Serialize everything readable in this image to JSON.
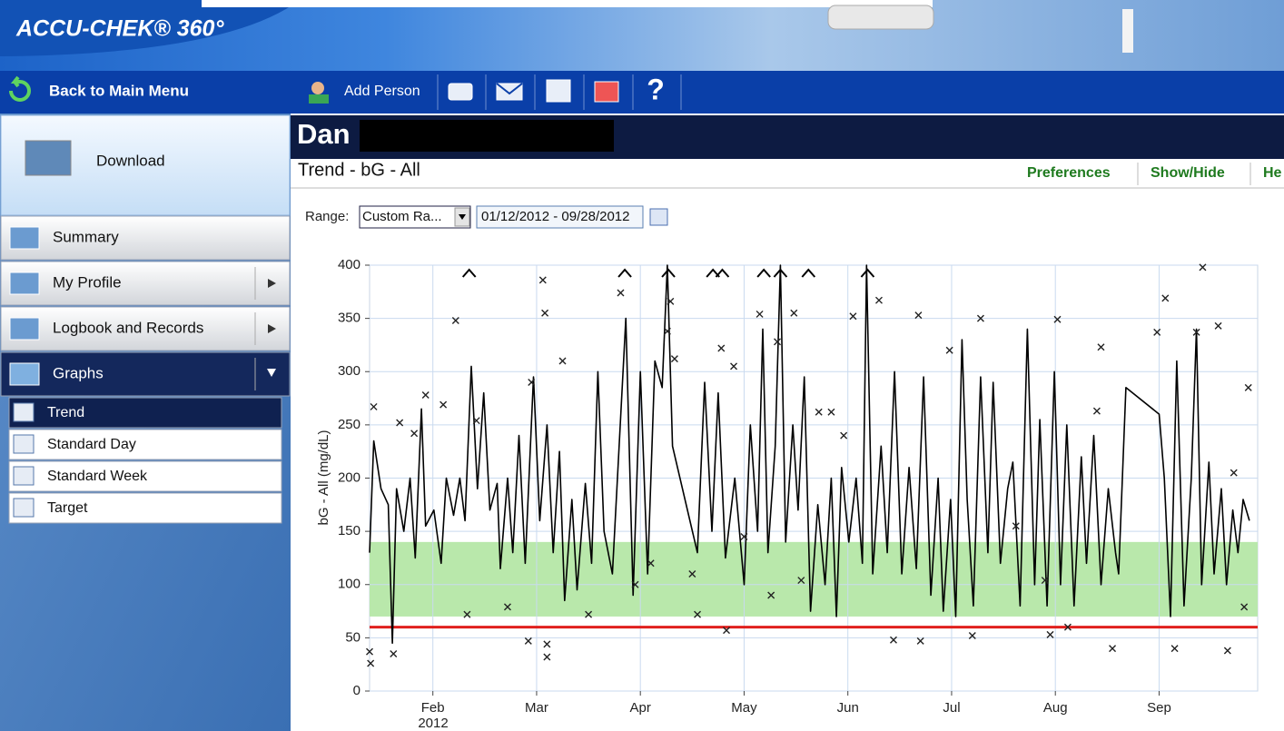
{
  "app": {
    "title": "ACCU-CHEK® 360°"
  },
  "toolbar": {
    "back": "Back to Main Menu",
    "add_person": "Add Person"
  },
  "sidebar": {
    "download": "Download",
    "menu": [
      "Summary",
      "My Profile",
      "Logbook and Records",
      "Graphs"
    ],
    "submenu": [
      "Trend",
      "Standard Day",
      "Standard Week",
      "Target"
    ]
  },
  "header": {
    "name": "Dan",
    "view_title": "Trend - bG - All",
    "links": [
      "Preferences",
      "Show/Hide",
      "He"
    ]
  },
  "range": {
    "label": "Range:",
    "select": "Custom Ra...",
    "dates": "01/12/2012 - 09/28/2012"
  },
  "chart_data": {
    "type": "line",
    "y_label": "bG - All (mg/dL)",
    "x_year_label": "2012",
    "xlim": [
      1.39,
      9.95
    ],
    "xticks": [
      {
        "value": 2,
        "label": "Feb"
      },
      {
        "value": 3,
        "label": "Mar"
      },
      {
        "value": 4,
        "label": "Apr"
      },
      {
        "value": 5,
        "label": "May"
      },
      {
        "value": 6,
        "label": "Jun"
      },
      {
        "value": 7,
        "label": "Jul"
      },
      {
        "value": 8,
        "label": "Aug"
      },
      {
        "value": 9,
        "label": "Sep"
      }
    ],
    "ylim": [
      0,
      400
    ],
    "yticks": [
      0,
      50,
      100,
      150,
      200,
      250,
      300,
      350,
      400
    ],
    "grid": true,
    "target_range": [
      70,
      140
    ],
    "target_color": "#b9e8ab",
    "hypo_limit": 60,
    "hypo_color": "#e0201e",
    "series": [
      {
        "type": "line",
        "color": "#000000",
        "x": [
          1.39,
          1.43,
          1.5,
          1.57,
          1.61,
          1.65,
          1.72,
          1.78,
          1.83,
          1.89,
          1.93,
          2.01,
          2.08,
          2.13,
          2.2,
          2.26,
          2.31,
          2.37,
          2.43,
          2.49,
          2.55,
          2.62,
          2.65,
          2.72,
          2.77,
          2.83,
          2.89,
          2.97,
          3.03,
          3.1,
          3.16,
          3.22,
          3.27,
          3.34,
          3.39,
          3.47,
          3.53,
          3.59,
          3.65,
          3.73,
          3.79,
          3.86,
          3.93,
          4.0,
          4.07,
          4.14,
          4.21,
          4.26,
          4.31,
          4.55,
          4.62,
          4.69,
          4.75,
          4.82,
          4.91,
          5.0,
          5.06,
          5.13,
          5.18,
          5.23,
          5.3,
          5.35,
          5.4,
          5.47,
          5.52,
          5.58,
          5.64,
          5.71,
          5.78,
          5.84,
          5.89,
          5.94,
          6.01,
          6.08,
          6.14,
          6.18,
          6.24,
          6.32,
          6.38,
          6.45,
          6.52,
          6.59,
          6.66,
          6.73,
          6.8,
          6.87,
          6.92,
          6.99,
          7.04,
          7.1,
          7.15,
          7.21,
          7.28,
          7.35,
          7.4,
          7.47,
          7.54,
          7.59,
          7.66,
          7.73,
          7.8,
          7.85,
          7.92,
          7.99,
          8.05,
          8.11,
          8.18,
          8.25,
          8.3,
          8.37,
          8.44,
          8.51,
          8.58,
          8.61,
          8.68,
          9.0,
          9.05,
          9.11,
          9.17,
          9.24,
          9.31,
          9.36,
          9.41,
          9.48,
          9.53,
          9.6,
          9.65,
          9.71,
          9.76,
          9.81,
          9.87
        ],
        "values": [
          130,
          235,
          190,
          175,
          45,
          190,
          150,
          200,
          125,
          265,
          155,
          170,
          120,
          200,
          165,
          200,
          160,
          305,
          190,
          280,
          170,
          195,
          115,
          200,
          130,
          240,
          120,
          295,
          160,
          250,
          130,
          225,
          85,
          180,
          95,
          195,
          120,
          300,
          150,
          110,
          220,
          350,
          90,
          300,
          110,
          310,
          285,
          400,
          230,
          130,
          290,
          150,
          280,
          125,
          200,
          100,
          250,
          150,
          340,
          130,
          230,
          400,
          140,
          250,
          170,
          295,
          75,
          175,
          100,
          200,
          70,
          210,
          140,
          200,
          120,
          400,
          110,
          230,
          130,
          300,
          110,
          210,
          115,
          295,
          90,
          200,
          75,
          180,
          70,
          330,
          180,
          80,
          295,
          130,
          290,
          120,
          190,
          215,
          80,
          340,
          100,
          255,
          80,
          300,
          100,
          250,
          80,
          220,
          120,
          240,
          100,
          190,
          130,
          110,
          285,
          260,
          200,
          70,
          310,
          80,
          200,
          340,
          100,
          215,
          110,
          190,
          100,
          170,
          130,
          180,
          160
        ]
      },
      {
        "type": "scatter",
        "marker": "x",
        "color": "#222222",
        "x": [
          1.39,
          1.4,
          1.43,
          1.62,
          1.68,
          1.82,
          1.93,
          2.1,
          2.22,
          2.33,
          2.42,
          2.72,
          2.92,
          2.95,
          3.06,
          3.08,
          3.1,
          3.1,
          3.25,
          3.5,
          3.81,
          3.95,
          4.1,
          4.26,
          4.29,
          4.33,
          4.5,
          4.55,
          4.78,
          4.83,
          4.9,
          5.0,
          5.15,
          5.26,
          5.32,
          5.48,
          5.55,
          5.72,
          5.84,
          5.96,
          6.05,
          6.3,
          6.44,
          6.68,
          6.7,
          6.98,
          7.2,
          7.28,
          7.62,
          7.9,
          7.95,
          8.02,
          8.12,
          8.4,
          8.44,
          8.55,
          8.98,
          9.06,
          9.15,
          9.36,
          9.42,
          9.57,
          9.66,
          9.72,
          9.82,
          9.86
        ],
        "values": [
          37,
          26,
          267,
          35,
          252,
          242,
          278,
          269,
          348,
          72,
          254,
          79,
          47,
          290,
          386,
          355,
          44,
          32,
          310,
          72,
          374,
          100,
          120,
          338,
          366,
          312,
          110,
          72,
          322,
          57,
          305,
          145,
          354,
          90,
          328,
          355,
          104,
          262,
          262,
          240,
          352,
          367,
          48,
          353,
          47,
          320,
          52,
          350,
          155,
          104,
          53,
          349,
          60,
          263,
          323,
          40,
          337,
          369,
          40,
          337,
          398,
          343,
          38,
          205,
          79,
          285
        ]
      }
    ],
    "above_range_x": [
      2.35,
      3.85,
      4.27,
      4.7,
      4.79,
      5.19,
      5.35,
      5.62,
      6.19
    ]
  }
}
